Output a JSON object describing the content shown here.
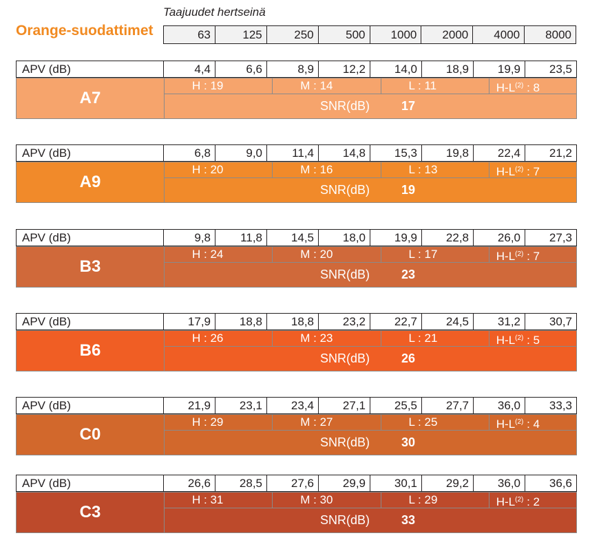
{
  "header": {
    "subtitle": "Taajuudet hertseinä",
    "title": "Orange-suodattimet",
    "title_color": "#f18a21",
    "frequencies": [
      "63",
      "125",
      "250",
      "500",
      "1000",
      "2000",
      "4000",
      "8000"
    ]
  },
  "filters": [
    {
      "name": "A7",
      "color": "#f6a46c",
      "apv_label": "APV (dB)",
      "apv": [
        "4,4",
        "6,6",
        "8,9",
        "12,2",
        "14,0",
        "18,9",
        "19,9",
        "23,5"
      ],
      "h": "H : 19",
      "m": "M : 14",
      "l": "L : 11",
      "hl_prefix": "H-L",
      "hl_sup": "(2)",
      "hl_suffix": " : 8",
      "snr_label": "SNR(dB)",
      "snr_value": "17"
    },
    {
      "name": "A9",
      "color": "#f18a2a",
      "apv_label": "APV (dB)",
      "apv": [
        "6,8",
        "9,0",
        "11,4",
        "14,8",
        "15,3",
        "19,8",
        "22,4",
        "21,2"
      ],
      "h": "H : 20",
      "m": "M : 16",
      "l": "L : 13",
      "hl_prefix": "H-L",
      "hl_sup": "(2)",
      "hl_suffix": " : 7",
      "snr_label": "SNR(dB)",
      "snr_value": "19"
    },
    {
      "name": "B3",
      "color": "#d0693a",
      "apv_label": "APV (dB)",
      "apv": [
        "9,8",
        "11,8",
        "14,5",
        "18,0",
        "19,9",
        "22,8",
        "26,0",
        "27,3"
      ],
      "h": "H : 24",
      "m": "M : 20",
      "l": "L : 17",
      "hl_prefix": "H-L",
      "hl_sup": "(2)",
      "hl_suffix": " : 7",
      "snr_label": "SNR(dB)",
      "snr_value": "23"
    },
    {
      "name": "B6",
      "color": "#f05e24",
      "apv_label": "APV (dB)",
      "apv": [
        "17,9",
        "18,8",
        "18,8",
        "23,2",
        "22,7",
        "24,5",
        "31,2",
        "30,7"
      ],
      "h": "H : 26",
      "m": "M : 23",
      "l": "L : 21",
      "hl_prefix": "H-L",
      "hl_sup": "(2)",
      "hl_suffix": " : 5",
      "snr_label": "SNR(dB)",
      "snr_value": "26"
    },
    {
      "name": "C0",
      "color": "#d2682c",
      "apv_label": "APV (dB)",
      "apv": [
        "21,9",
        "23,1",
        "23,4",
        "27,1",
        "25,5",
        "27,7",
        "36,0",
        "33,3"
      ],
      "h": "H : 29",
      "m": "M : 27",
      "l": "L : 25",
      "hl_prefix": "H-L",
      "hl_sup": "(2)",
      "hl_suffix": " : 4",
      "snr_label": "SNR(dB)",
      "snr_value": "30"
    },
    {
      "name": "C3",
      "color": "#bd4a2b",
      "apv_label": "APV (dB)",
      "apv": [
        "26,6",
        "28,5",
        "27,6",
        "29,9",
        "30,1",
        "29,2",
        "36,0",
        "36,6"
      ],
      "h": "H : 31",
      "m": "M : 30",
      "l": "L : 29",
      "hl_prefix": "H-L",
      "hl_sup": "(2)",
      "hl_suffix": " : 2",
      "snr_label": "SNR(dB)",
      "snr_value": "33"
    }
  ]
}
